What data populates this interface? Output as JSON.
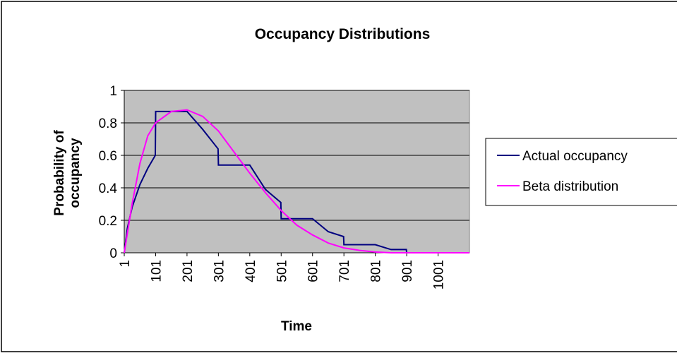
{
  "chart_data": {
    "type": "line",
    "title": "Occupancy Distributions",
    "xlabel": "Time",
    "ylabel": "Probability of occupancy",
    "xlim": [
      1,
      1101
    ],
    "ylim": [
      0,
      1
    ],
    "xticks": [
      1,
      101,
      201,
      301,
      401,
      501,
      601,
      701,
      801,
      901,
      1001
    ],
    "yticks": [
      0,
      0.2,
      0.4,
      0.6,
      0.8,
      1
    ],
    "grid": true,
    "legend": "right",
    "plot_background": "#c0c0c0",
    "series": [
      {
        "name": "Actual occupancy",
        "color": "#000080",
        "x": [
          1,
          11,
          26,
          51,
          76,
          100,
          101,
          201,
          251,
          300,
          301,
          401,
          451,
          500,
          501,
          601,
          651,
          700,
          701,
          801,
          851,
          900,
          901,
          1101
        ],
        "values": [
          0,
          0.15,
          0.28,
          0.42,
          0.52,
          0.6,
          0.87,
          0.87,
          0.76,
          0.64,
          0.54,
          0.54,
          0.39,
          0.31,
          0.21,
          0.21,
          0.13,
          0.1,
          0.05,
          0.05,
          0.02,
          0.02,
          0,
          0
        ]
      },
      {
        "name": "Beta distribution",
        "color": "#ff00ff",
        "x": [
          1,
          26,
          51,
          76,
          101,
          151,
          201,
          251,
          301,
          351,
          401,
          451,
          501,
          551,
          601,
          651,
          701,
          751,
          801,
          851,
          901,
          1101
        ],
        "values": [
          0,
          0.3,
          0.55,
          0.72,
          0.8,
          0.87,
          0.88,
          0.84,
          0.75,
          0.62,
          0.49,
          0.37,
          0.26,
          0.17,
          0.11,
          0.06,
          0.03,
          0.015,
          0.005,
          0,
          0,
          0
        ]
      }
    ]
  }
}
